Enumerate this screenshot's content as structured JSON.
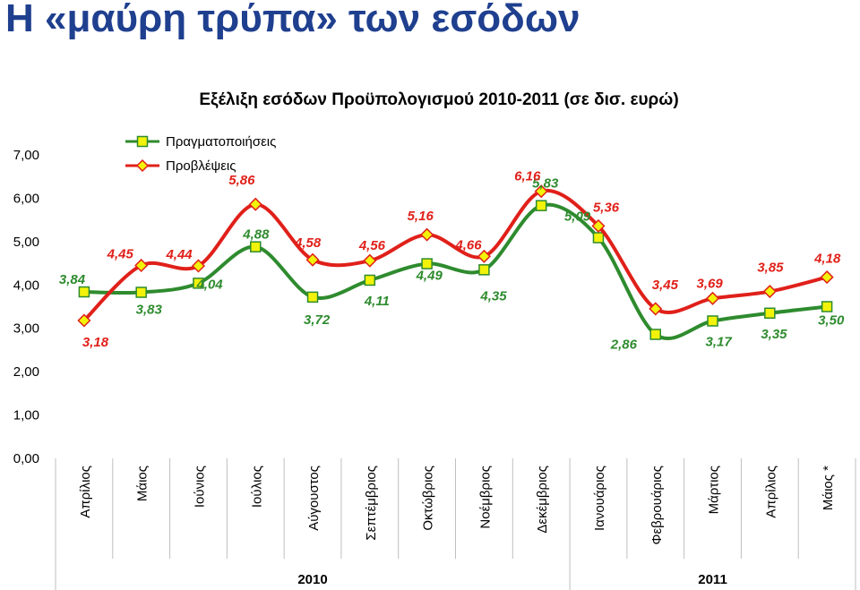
{
  "page": {
    "title": "Η «μαύρη τρύπα» των εσόδων"
  },
  "chart_data": {
    "type": "line",
    "title": "Εξέλιξη εσόδων Προϋπολογισμού 2010-2011 (σε δισ. ευρώ)",
    "categories": [
      "Απρίλιος",
      "Μάιος",
      "Ιούνιος",
      "Ιούλιος",
      "Αύγουστος",
      "Σεπτέμβριος",
      "Οκτώβριος",
      "Νοέμβριος",
      "Δεκέμβριος",
      "Ιανουάριος",
      "Φεβρουάριος",
      "Μάρτιος",
      "Απρίλιος",
      "Μάιος *"
    ],
    "years": [
      {
        "label": "2010",
        "from": 0,
        "to": 8
      },
      {
        "label": "2011",
        "from": 9,
        "to": 13
      }
    ],
    "series": [
      {
        "name": "Πραγματοποιήσεις",
        "color": "#2e8b2e",
        "marker": "square",
        "values": [
          3.84,
          3.83,
          4.04,
          4.88,
          3.72,
          4.11,
          4.49,
          4.35,
          5.83,
          5.09,
          2.86,
          3.17,
          3.35,
          3.5
        ],
        "labels": [
          "3,84",
          "3,83",
          "4,04",
          "4,88",
          "3,72",
          "4,11",
          "4,49",
          "4,35",
          "5,83",
          "5,09",
          "2,86",
          "3,17",
          "3,35",
          "3,50"
        ]
      },
      {
        "name": "Προβλέψεις",
        "color": "#e0201a",
        "marker": "diamond",
        "values": [
          3.18,
          4.45,
          4.44,
          5.86,
          4.58,
          4.56,
          5.16,
          4.66,
          6.16,
          5.36,
          3.45,
          3.69,
          3.85,
          4.18
        ],
        "labels": [
          "3,18",
          "4,45",
          "4,44",
          "5,86",
          "4,58",
          "4,56",
          "5,16",
          "4,66",
          "6,16",
          "5,36",
          "3,45",
          "3,69",
          "3,85",
          "4,18"
        ]
      }
    ],
    "y_ticks": [
      "0,00",
      "1,00",
      "2,00",
      "3,00",
      "4,00",
      "5,00",
      "6,00",
      "7,00"
    ],
    "ylim": [
      0,
      7
    ],
    "grid": false,
    "legend_position": "top-left"
  }
}
